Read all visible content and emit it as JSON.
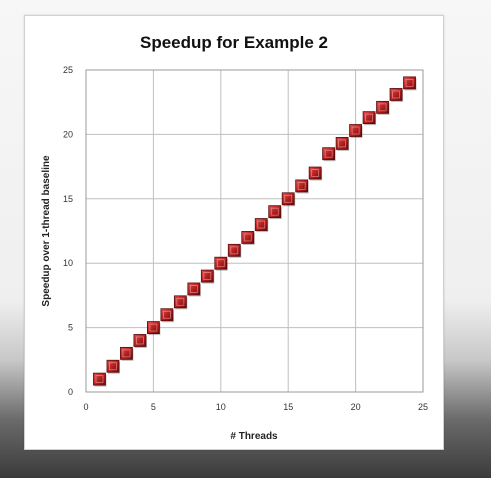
{
  "chart_data": {
    "type": "scatter",
    "title": "Speedup for Example 2",
    "xlabel": "# Threads",
    "ylabel": "Speedup over 1-thread baseline",
    "xlim": [
      0,
      25
    ],
    "ylim": [
      0,
      25
    ],
    "x_ticks": [
      0,
      5,
      10,
      15,
      20,
      25
    ],
    "y_ticks": [
      0,
      5,
      10,
      15,
      20,
      25
    ],
    "grid": true,
    "legend": "none",
    "marker": "square",
    "marker_color": "#b01c1c",
    "series": [
      {
        "x": [
          1,
          2,
          3,
          4,
          5,
          6,
          7,
          8,
          9,
          10,
          11,
          12,
          13,
          14,
          15,
          16,
          17,
          18,
          19,
          20,
          21,
          22,
          23,
          24
        ],
        "values": [
          1,
          2,
          3,
          4,
          5,
          6,
          7,
          8,
          9,
          10,
          11,
          12,
          13,
          14,
          15,
          16,
          17,
          18.5,
          19.3,
          20.3,
          21.3,
          22.1,
          23.1,
          24
        ]
      }
    ]
  }
}
